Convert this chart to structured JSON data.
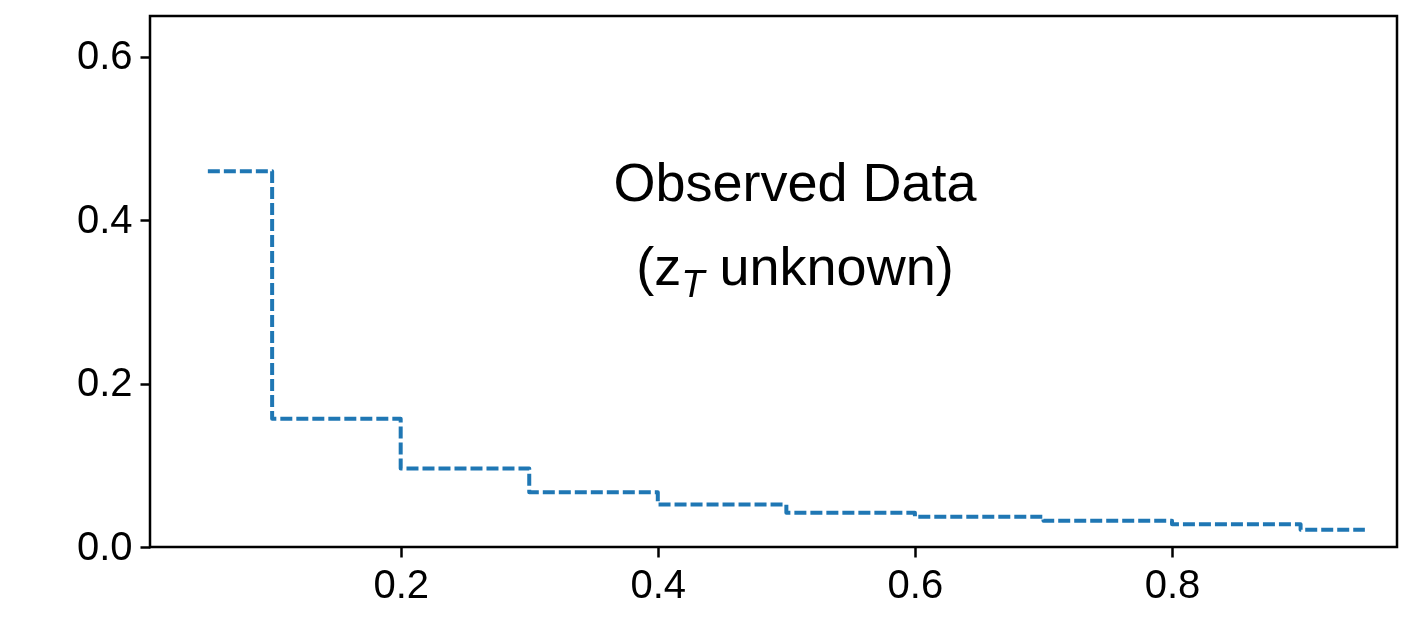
{
  "chart_data": {
    "type": "step",
    "x": [
      0.05,
      0.15,
      0.25,
      0.35,
      0.45,
      0.55,
      0.65,
      0.75,
      0.85,
      0.95
    ],
    "series": [
      {
        "color": "#1f77b4",
        "values": [
          0.46,
          0.157,
          0.096,
          0.067,
          0.052,
          0.042,
          0.037,
          0.032,
          0.028,
          0.021
        ]
      }
    ],
    "xlim": [
      0.005,
      0.975
    ],
    "xticks": [
      0.2,
      0.4,
      0.6,
      0.8
    ],
    "ylim": [
      0,
      0.65
    ],
    "yticks": [
      {
        "value": 0,
        "label": "0.0"
      },
      0.2,
      0.4,
      0.6
    ],
    "line_style": "dashed",
    "annotations": [
      "Observed Data",
      "(z$_{T}$ unknown)"
    ]
  }
}
